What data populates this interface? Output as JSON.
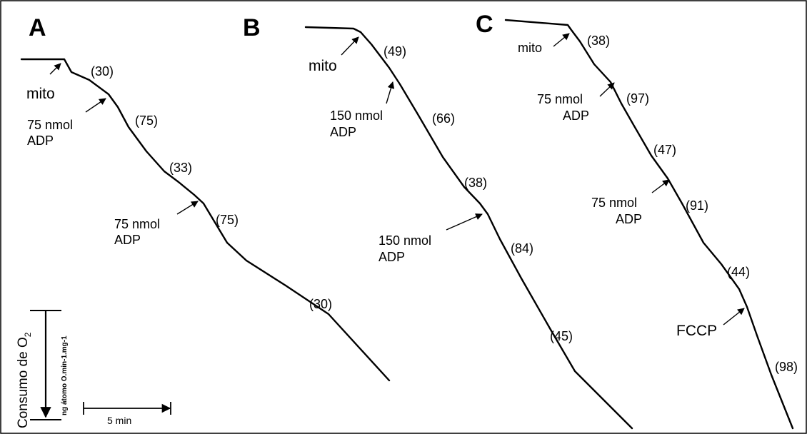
{
  "panels": {
    "a": {
      "letter": "A",
      "rates": [
        "(30)",
        "(75)",
        "(33)",
        "(75)",
        "(30)"
      ],
      "additions": {
        "mito": "mito",
        "adp1_line1": "75 nmol",
        "adp1_line2": "ADP",
        "adp2_line1": "75 nmol",
        "adp2_line2": "ADP"
      }
    },
    "b": {
      "letter": "B",
      "rates": [
        "(49)",
        "(66)",
        "(38)",
        "(84)",
        "(45)"
      ],
      "additions": {
        "mito": "mito",
        "adp1_line1": "150 nmol",
        "adp1_line2": "ADP",
        "adp2_line1": "150 nmol",
        "adp2_line2": "ADP"
      }
    },
    "c": {
      "letter": "C",
      "rates": [
        "(38)",
        "(97)",
        "(47)",
        "(91)",
        "(44)",
        "(98)"
      ],
      "additions": {
        "mito": "mito",
        "adp1_line1": "75 nmol",
        "adp1_line2": "ADP",
        "adp2_line1": "75 nmol",
        "adp2_line2": "ADP",
        "fccp": "FCCP"
      }
    }
  },
  "scale_bars": {
    "vertical_label": "Consumo de O",
    "vertical_subscript": "2",
    "vertical_unit": "ng átomo O.min-1.mg-1",
    "horizontal_label": "5 min"
  }
}
